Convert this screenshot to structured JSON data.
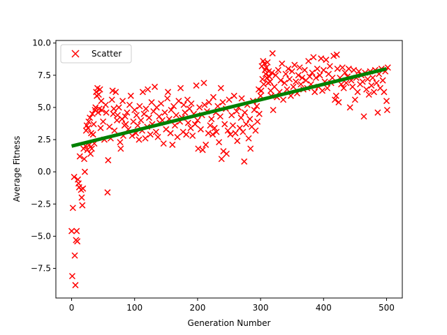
{
  "chart_data": {
    "type": "scatter",
    "title": "",
    "xlabel": "Generation Number",
    "ylabel": "Average Fitness",
    "xlim": [
      -25,
      525
    ],
    "ylim": [
      -9.8,
      10.2
    ],
    "xticks": [
      0,
      100,
      200,
      300,
      400,
      500
    ],
    "xtick_labels": [
      "0",
      "100",
      "200",
      "300",
      "400",
      "500"
    ],
    "yticks": [
      -7.5,
      -5.0,
      -2.5,
      0.0,
      2.5,
      5.0,
      7.5,
      10.0
    ],
    "ytick_labels": [
      "−7.5",
      "−5.0",
      "−2.5",
      "0.0",
      "2.5",
      "5.0",
      "7.5",
      "10.0"
    ],
    "grid": false,
    "legend": {
      "placement": "top-left",
      "entries": [
        "Scatter"
      ]
    },
    "series": [
      {
        "name": "Scatter",
        "marker": "x",
        "color": "#ff0000",
        "points": [
          [
            0,
            -4.6
          ],
          [
            1,
            -8.1
          ],
          [
            2,
            -2.8
          ],
          [
            4,
            -0.4
          ],
          [
            5,
            -6.5
          ],
          [
            6,
            -8.8
          ],
          [
            7,
            -5.3
          ],
          [
            8,
            -4.6
          ],
          [
            9,
            -5.4
          ],
          [
            10,
            -0.6
          ],
          [
            11,
            -0.9
          ],
          [
            12,
            -1.2
          ],
          [
            13,
            1.2
          ],
          [
            15,
            -1.4
          ],
          [
            16,
            -2.0
          ],
          [
            17,
            -2.6
          ],
          [
            18,
            -1.3
          ],
          [
            19,
            1.8
          ],
          [
            20,
            1.0
          ],
          [
            21,
            0.0
          ],
          [
            22,
            2.0
          ],
          [
            23,
            3.2
          ],
          [
            24,
            3.6
          ],
          [
            25,
            1.7
          ],
          [
            26,
            3.4
          ],
          [
            27,
            3.9
          ],
          [
            28,
            2.1
          ],
          [
            29,
            4.2
          ],
          [
            30,
            1.4
          ],
          [
            31,
            3.0
          ],
          [
            32,
            1.8
          ],
          [
            33,
            4.5
          ],
          [
            34,
            2.9
          ],
          [
            35,
            3.7
          ],
          [
            36,
            2.2
          ],
          [
            37,
            4.8
          ],
          [
            38,
            5.0
          ],
          [
            39,
            6.2
          ],
          [
            40,
            5.9
          ],
          [
            41,
            6.5
          ],
          [
            42,
            4.6
          ],
          [
            43,
            6.0
          ],
          [
            44,
            4.9
          ],
          [
            45,
            6.4
          ],
          [
            46,
            3.4
          ],
          [
            47,
            5.5
          ],
          [
            48,
            4.8
          ],
          [
            50,
            3.9
          ],
          [
            52,
            2.5
          ],
          [
            54,
            5.2
          ],
          [
            55,
            4.6
          ],
          [
            57,
            -1.6
          ],
          [
            58,
            0.9
          ],
          [
            60,
            3.5
          ],
          [
            62,
            2.6
          ],
          [
            64,
            5.6
          ],
          [
            65,
            6.3
          ],
          [
            66,
            4.5
          ],
          [
            67,
            4.9
          ],
          [
            68,
            3.2
          ],
          [
            70,
            6.2
          ],
          [
            72,
            4.0
          ],
          [
            73,
            4.4
          ],
          [
            75,
            5.0
          ],
          [
            77,
            2.3
          ],
          [
            78,
            1.8
          ],
          [
            80,
            4.1
          ],
          [
            81,
            5.5
          ],
          [
            82,
            2.8
          ],
          [
            84,
            3.6
          ],
          [
            85,
            4.3
          ],
          [
            86,
            3.7
          ],
          [
            88,
            4.6
          ],
          [
            90,
            3.3
          ],
          [
            92,
            5.2
          ],
          [
            94,
            5.9
          ],
          [
            96,
            2.8
          ],
          [
            98,
            3.9
          ],
          [
            100,
            4.8
          ],
          [
            102,
            3.0
          ],
          [
            103,
            4.4
          ],
          [
            105,
            3.6
          ],
          [
            107,
            2.5
          ],
          [
            108,
            5.1
          ],
          [
            110,
            4.0
          ],
          [
            112,
            3.2
          ],
          [
            113,
            6.2
          ],
          [
            115,
            4.5
          ],
          [
            117,
            2.6
          ],
          [
            118,
            4.9
          ],
          [
            120,
            3.5
          ],
          [
            121,
            6.4
          ],
          [
            123,
            4.2
          ],
          [
            125,
            2.9
          ],
          [
            127,
            5.4
          ],
          [
            128,
            3.7
          ],
          [
            130,
            4.7
          ],
          [
            132,
            6.6
          ],
          [
            134,
            3.1
          ],
          [
            135,
            5.0
          ],
          [
            137,
            2.7
          ],
          [
            139,
            4.3
          ],
          [
            140,
            3.8
          ],
          [
            142,
            5.3
          ],
          [
            144,
            4.0
          ],
          [
            146,
            2.2
          ],
          [
            148,
            4.6
          ],
          [
            150,
            3.3
          ],
          [
            152,
            5.7
          ],
          [
            153,
            6.2
          ],
          [
            155,
            4.1
          ],
          [
            157,
            3.0
          ],
          [
            158,
            4.8
          ],
          [
            160,
            2.1
          ],
          [
            162,
            5.1
          ],
          [
            164,
            3.6
          ],
          [
            166,
            4.4
          ],
          [
            168,
            2.7
          ],
          [
            170,
            5.5
          ],
          [
            172,
            3.9
          ],
          [
            173,
            6.5
          ],
          [
            175,
            4.2
          ],
          [
            177,
            3.1
          ],
          [
            178,
            5.2
          ],
          [
            180,
            4.6
          ],
          [
            182,
            2.9
          ],
          [
            184,
            5.6
          ],
          [
            185,
            3.8
          ],
          [
            187,
            4.9
          ],
          [
            189,
            3.4
          ],
          [
            190,
            5.3
          ],
          [
            192,
            2.8
          ],
          [
            194,
            4.5
          ],
          [
            196,
            3.7
          ],
          [
            198,
            6.7
          ],
          [
            200,
            4.0
          ],
          [
            201,
            1.8
          ],
          [
            203,
            5.0
          ],
          [
            205,
            3.3
          ],
          [
            207,
            4.4
          ],
          [
            208,
            1.7
          ],
          [
            210,
            6.9
          ],
          [
            211,
            5.2
          ],
          [
            213,
            2.1
          ],
          [
            215,
            4.7
          ],
          [
            217,
            3.0
          ],
          [
            218,
            5.4
          ],
          [
            220,
            3.6
          ],
          [
            222,
            4.1
          ],
          [
            224,
            2.9
          ],
          [
            225,
            5.8
          ],
          [
            227,
            3.4
          ],
          [
            229,
            4.6
          ],
          [
            230,
            3.1
          ],
          [
            232,
            5.1
          ],
          [
            234,
            2.3
          ],
          [
            236,
            4.3
          ],
          [
            237,
            6.5
          ],
          [
            238,
            1.0
          ],
          [
            240,
            5.4
          ],
          [
            241,
            1.6
          ],
          [
            243,
            3.7
          ],
          [
            245,
            4.9
          ],
          [
            246,
            1.4
          ],
          [
            248,
            3.2
          ],
          [
            250,
            5.6
          ],
          [
            252,
            2.9
          ],
          [
            254,
            4.4
          ],
          [
            256,
            3.6
          ],
          [
            258,
            5.9
          ],
          [
            260,
            3.0
          ],
          [
            262,
            4.7
          ],
          [
            263,
            2.4
          ],
          [
            265,
            5.0
          ],
          [
            267,
            3.4
          ],
          [
            269,
            4.2
          ],
          [
            270,
            5.7
          ],
          [
            272,
            3.1
          ],
          [
            274,
            0.8
          ],
          [
            275,
            4.6
          ],
          [
            277,
            3.7
          ],
          [
            279,
            5.2
          ],
          [
            281,
            2.6
          ],
          [
            283,
            4.1
          ],
          [
            284,
            1.8
          ],
          [
            286,
            3.5
          ],
          [
            288,
            5.5
          ],
          [
            290,
            4.8
          ],
          [
            292,
            3.2
          ],
          [
            294,
            5.1
          ],
          [
            295,
            3.9
          ],
          [
            297,
            6.4
          ],
          [
            298,
            4.5
          ],
          [
            300,
            5.9
          ],
          [
            301,
            6.3
          ],
          [
            302,
            8.2
          ],
          [
            303,
            7.2
          ],
          [
            304,
            8.6
          ],
          [
            305,
            6.8
          ],
          [
            306,
            8.4
          ],
          [
            307,
            7.9
          ],
          [
            308,
            7.6
          ],
          [
            309,
            8.1
          ],
          [
            310,
            7.3
          ],
          [
            311,
            8.5
          ],
          [
            312,
            6.9
          ],
          [
            313,
            7.8
          ],
          [
            314,
            7.4
          ],
          [
            315,
            7.0
          ],
          [
            316,
            6.3
          ],
          [
            317,
            5.9
          ],
          [
            318,
            7.7
          ],
          [
            319,
            9.2
          ],
          [
            320,
            4.8
          ],
          [
            322,
            6.6
          ],
          [
            324,
            7.5
          ],
          [
            326,
            5.8
          ],
          [
            328,
            7.9
          ],
          [
            330,
            6.2
          ],
          [
            332,
            7.1
          ],
          [
            334,
            8.4
          ],
          [
            336,
            5.6
          ],
          [
            338,
            6.9
          ],
          [
            340,
            7.6
          ],
          [
            342,
            6.4
          ],
          [
            344,
            8.0
          ],
          [
            346,
            7.2
          ],
          [
            348,
            5.9
          ],
          [
            350,
            7.8
          ],
          [
            352,
            6.6
          ],
          [
            354,
            8.3
          ],
          [
            356,
            7.0
          ],
          [
            358,
            6.1
          ],
          [
            360,
            7.5
          ],
          [
            362,
            8.1
          ],
          [
            364,
            6.8
          ],
          [
            366,
            7.3
          ],
          [
            368,
            6.4
          ],
          [
            370,
            7.9
          ],
          [
            372,
            7.1
          ],
          [
            374,
            6.5
          ],
          [
            376,
            8.6
          ],
          [
            378,
            7.4
          ],
          [
            380,
            6.8
          ],
          [
            382,
            7.7
          ],
          [
            384,
            8.9
          ],
          [
            386,
            6.2
          ],
          [
            388,
            7.3
          ],
          [
            390,
            8.0
          ],
          [
            392,
            6.6
          ],
          [
            394,
            7.5
          ],
          [
            396,
            8.8
          ],
          [
            398,
            6.3
          ],
          [
            400,
            7.9
          ],
          [
            402,
            7.0
          ],
          [
            404,
            8.7
          ],
          [
            406,
            6.5
          ],
          [
            408,
            7.6
          ],
          [
            410,
            8.2
          ],
          [
            412,
            6.9
          ],
          [
            414,
            7.3
          ],
          [
            416,
            9.0
          ],
          [
            418,
            5.6
          ],
          [
            420,
            5.9
          ],
          [
            421,
            9.1
          ],
          [
            422,
            8.0
          ],
          [
            424,
            5.4
          ],
          [
            426,
            7.3
          ],
          [
            428,
            6.8
          ],
          [
            430,
            8.1
          ],
          [
            432,
            6.5
          ],
          [
            434,
            7.7
          ],
          [
            436,
            6.9
          ],
          [
            438,
            7.4
          ],
          [
            440,
            8.0
          ],
          [
            442,
            5.0
          ],
          [
            444,
            7.1
          ],
          [
            446,
            6.6
          ],
          [
            448,
            7.9
          ],
          [
            450,
            5.6
          ],
          [
            452,
            7.3
          ],
          [
            454,
            6.2
          ],
          [
            456,
            7.8
          ],
          [
            458,
            6.8
          ],
          [
            460,
            7.5
          ],
          [
            462,
            7.0
          ],
          [
            464,
            4.3
          ],
          [
            466,
            7.7
          ],
          [
            468,
            6.4
          ],
          [
            470,
            7.2
          ],
          [
            472,
            6.0
          ],
          [
            474,
            7.8
          ],
          [
            476,
            6.7
          ],
          [
            478,
            7.3
          ],
          [
            480,
            6.2
          ],
          [
            482,
            7.9
          ],
          [
            484,
            6.9
          ],
          [
            486,
            4.6
          ],
          [
            488,
            7.6
          ],
          [
            490,
            6.5
          ],
          [
            492,
            8.0
          ],
          [
            494,
            7.1
          ],
          [
            496,
            6.2
          ],
          [
            498,
            7.8
          ],
          [
            500,
            5.5
          ],
          [
            501,
            4.8
          ],
          [
            502,
            8.1
          ]
        ]
      }
    ],
    "trend_line": {
      "color": "#008000",
      "points": [
        [
          0,
          2.0
        ],
        [
          500,
          8.0
        ]
      ]
    }
  }
}
